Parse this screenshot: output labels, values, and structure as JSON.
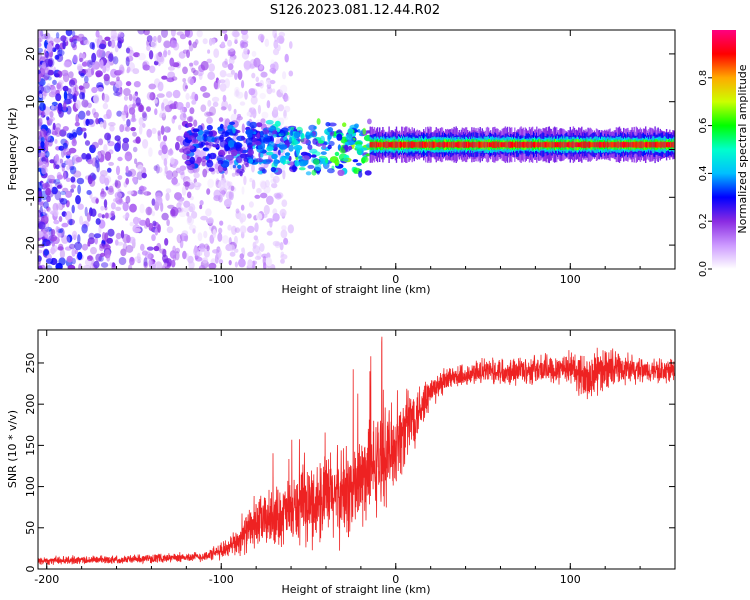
{
  "title": "S126.2023.081.12.44.R02",
  "chart_data": [
    {
      "type": "heatmap",
      "xlabel": "Height of straight line (km)",
      "ylabel": "Frequency (Hz)",
      "xlim": [
        -205,
        160
      ],
      "ylim": [
        -25,
        25
      ],
      "xticks": [
        -200,
        -100,
        0,
        100
      ],
      "yticks": [
        -20,
        -10,
        0,
        10,
        20
      ],
      "colorbar": {
        "label": "Normalized spectral amplitude",
        "range": [
          0,
          1
        ],
        "ticks": [
          0.0,
          0.2,
          0.4,
          0.6,
          0.8
        ],
        "colors": [
          "#ffffff",
          "#cc99ff",
          "#8a2be2",
          "#0000ff",
          "#00bfff",
          "#00ffcc",
          "#00ff00",
          "#ccff00",
          "#ffaa00",
          "#ff0000",
          "#ff0080"
        ]
      },
      "features": [
        {
          "name": "noise",
          "x_range": [
            -205,
            -60
          ],
          "y_range": [
            -25,
            25
          ],
          "amplitude": 0.12
        },
        {
          "name": "transition",
          "x_range": [
            -120,
            -15
          ],
          "y_range": [
            -4,
            5
          ],
          "amplitude": 0.45
        },
        {
          "name": "carrier",
          "x_range": [
            -15,
            160
          ],
          "y_center": 1.0,
          "y_halfwidth": 1.2,
          "amplitude": 0.9
        }
      ]
    },
    {
      "type": "line",
      "xlabel": "Height of straight line (km)",
      "ylabel": "SNR (10 * v/v)",
      "xlim": [
        -205,
        160
      ],
      "ylim": [
        0,
        290
      ],
      "xticks": [
        -200,
        -100,
        0,
        100
      ],
      "yticks": [
        0,
        50,
        100,
        150,
        200,
        250
      ],
      "color": "#ee2222",
      "trend": {
        "x": [
          -205,
          -150,
          -110,
          -95,
          -80,
          -60,
          -40,
          -25,
          -10,
          0,
          10,
          20,
          30,
          50,
          80,
          100,
          110,
          120,
          140,
          160
        ],
        "y": [
          10,
          12,
          15,
          25,
          55,
          70,
          85,
          95,
          130,
          150,
          185,
          215,
          230,
          240,
          242,
          245,
          230,
          245,
          240,
          240
        ],
        "noise": [
          5,
          5,
          6,
          12,
          30,
          40,
          55,
          60,
          60,
          50,
          40,
          20,
          15,
          15,
          18,
          20,
          30,
          25,
          15,
          15
        ]
      }
    }
  ]
}
